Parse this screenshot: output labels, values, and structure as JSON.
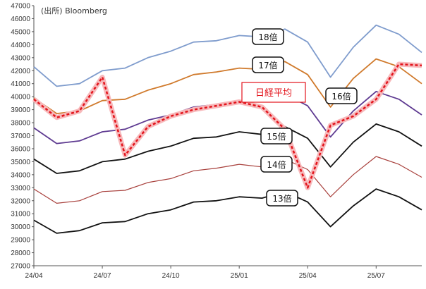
{
  "chart_data": {
    "type": "line",
    "source": "(出所) Bloomberg",
    "xlabel": "",
    "ylabel": "",
    "x_ticks": [
      "24/04",
      "24/07",
      "24/10",
      "25/01",
      "25/04",
      "25/07"
    ],
    "y_ticks": [
      27000,
      28000,
      29000,
      30000,
      31000,
      32000,
      33000,
      34000,
      35000,
      36000,
      37000,
      38000,
      39000,
      40000,
      41000,
      42000,
      43000,
      44000,
      45000,
      46000,
      47000
    ],
    "ylim": [
      27000,
      47000
    ],
    "x": [
      "2024-04",
      "2024-05",
      "2024-06",
      "2024-07",
      "2024-08",
      "2024-09",
      "2024-10",
      "2024-11",
      "2024-12",
      "2025-01",
      "2025-02",
      "2025-03",
      "2025-04",
      "2025-05",
      "2025-06",
      "2025-07",
      "2025-08",
      "2025-09"
    ],
    "colors": {
      "18x": "#7f9ccd",
      "17x": "#d07a2c",
      "16x": "#5e3a91",
      "15x": "#111111",
      "14x": "#a8403c",
      "13x": "#111111",
      "nikkei": "#e3131b"
    },
    "series": [
      {
        "name": "18倍",
        "values": [
          42300,
          40800,
          41000,
          42000,
          42200,
          43000,
          43500,
          44200,
          44300,
          44700,
          44600,
          45200,
          44200,
          41500,
          43800,
          45500,
          44800,
          43400
        ]
      },
      {
        "name": "17倍",
        "values": [
          39900,
          38700,
          38900,
          39700,
          39800,
          40500,
          41000,
          41700,
          41900,
          42200,
          42100,
          42700,
          41700,
          39200,
          41400,
          42900,
          42300,
          41000
        ]
      },
      {
        "name": "16倍",
        "values": [
          37600,
          36400,
          36600,
          37300,
          37500,
          38200,
          38600,
          39200,
          39400,
          39700,
          39600,
          40200,
          39300,
          36900,
          38900,
          40400,
          39800,
          38600
        ]
      },
      {
        "name": "15倍",
        "values": [
          35200,
          34100,
          34300,
          35000,
          35200,
          35800,
          36200,
          36800,
          36900,
          37300,
          37100,
          37700,
          36800,
          34600,
          36500,
          37900,
          37300,
          36200
        ]
      },
      {
        "name": "14倍",
        "values": [
          32900,
          31800,
          32000,
          32700,
          32800,
          33400,
          33700,
          34300,
          34500,
          34800,
          34600,
          35200,
          34400,
          32300,
          34000,
          35400,
          34800,
          33800
        ]
      },
      {
        "name": "13倍",
        "values": [
          30500,
          29500,
          29700,
          30300,
          30400,
          31000,
          31300,
          31900,
          32000,
          32300,
          32200,
          32700,
          31900,
          30000,
          31600,
          32900,
          32300,
          31300
        ]
      },
      {
        "name": "日経平均",
        "values": [
          39800,
          38400,
          38900,
          41500,
          35500,
          37700,
          38500,
          39000,
          39300,
          39600,
          39200,
          37500,
          33000,
          37800,
          38500,
          39800,
          42500,
          42400
        ]
      }
    ],
    "annotations": [
      "18倍",
      "17倍",
      "16倍",
      "15倍",
      "14倍",
      "13倍",
      "日経平均"
    ]
  }
}
